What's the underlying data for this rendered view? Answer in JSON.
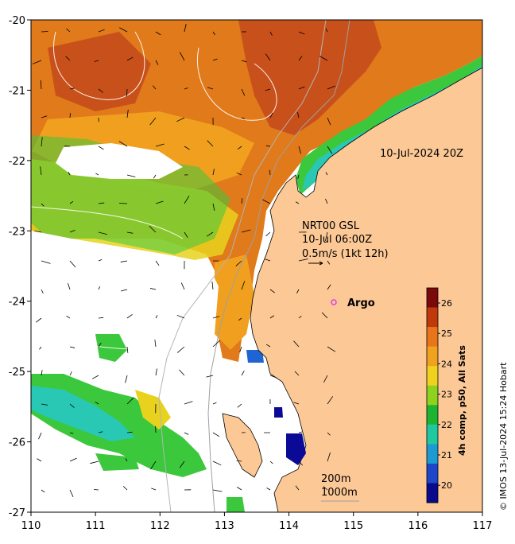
{
  "map": {
    "x_ticks": [
      "110",
      "111",
      "112",
      "113",
      "114",
      "115",
      "116",
      "117"
    ],
    "y_ticks": [
      "-20",
      "-21",
      "-22",
      "-23",
      "-24",
      "-25",
      "-26",
      "-27"
    ],
    "lon_range": [
      110,
      117
    ],
    "lat_range": [
      -27,
      -20
    ]
  },
  "annotations": {
    "obs_time": "10-Jul-2024 20Z",
    "current_model": "NRT00 GSL",
    "current_time": "10-Jul 06:00Z",
    "current_scale": "0.5m/s (1kt 12h)",
    "argo": "Argo",
    "isobath_1": "200m",
    "isobath_2": "1000m"
  },
  "colorbar": {
    "title": "4h comp, p50, All Sats",
    "labels": [
      "26",
      "25",
      "24",
      "23",
      "22",
      "21",
      "20"
    ],
    "colors": [
      "#7a0a0a",
      "#c0390b",
      "#e8751a",
      "#f0a21e",
      "#f0d21e",
      "#8cd21e",
      "#1eb432",
      "#1ec8a0",
      "#1e9ad2",
      "#1e46c8",
      "#0a0a8c"
    ]
  },
  "colors": {
    "land": "#fbc896",
    "warm": "#e07a1a",
    "hot": "#c8501a",
    "mid": "#f0a01e",
    "yellow": "#e8d21e",
    "green": "#3cc83c",
    "cyan": "#28c8b4",
    "blue": "#1e64d2",
    "navy": "#0a0a96",
    "cloud": "#ffffff",
    "argo": "#e040e0"
  },
  "credit": "© IMOS 13-Jul-2024 15:24 Hobart"
}
